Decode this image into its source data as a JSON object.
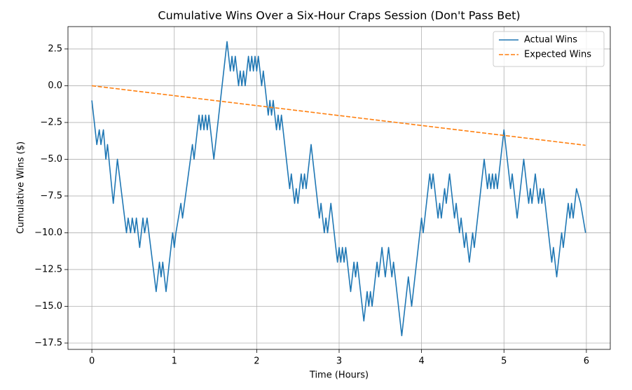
{
  "chart_data": {
    "type": "line",
    "title": "Cumulative Wins Over a Six-Hour Craps Session (Don't Pass Bet)",
    "x_label": "Time (Hours)",
    "y_label": "Cumulative Wins ($)",
    "xlim": [
      -0.29,
      6.29
    ],
    "ylim": [
      -17.93,
      4.02
    ],
    "xticks": [
      0,
      1,
      2,
      3,
      4,
      5,
      6
    ],
    "yticks": [
      {
        "value": 2.5,
        "label": "2.5"
      },
      {
        "value": 0,
        "label": "0.0"
      },
      {
        "value": -2.5,
        "label": "−2.5"
      },
      {
        "value": -5,
        "label": "−5.0"
      },
      {
        "value": -7.5,
        "label": "−7.5"
      },
      {
        "value": -10,
        "label": "−10.0"
      },
      {
        "value": -12.5,
        "label": "−12.5"
      },
      {
        "value": -15,
        "label": "−15.0"
      },
      {
        "value": -17.5,
        "label": "−17.5"
      }
    ],
    "grid": true,
    "legend": "upper right",
    "series": [
      {
        "name": "Actual Wins",
        "color": "#1f77b4",
        "dash": "solid",
        "x": [
          0,
          0.06,
          0.09,
          0.11,
          0.14,
          0.17,
          0.19,
          0.26,
          0.31,
          0.42,
          0.44,
          0.47,
          0.49,
          0.52,
          0.54,
          0.58,
          0.62,
          0.64,
          0.67,
          0.78,
          0.82,
          0.84,
          0.86,
          0.9,
          0.98,
          1.0,
          1.02,
          1.08,
          1.1,
          1.22,
          1.24,
          1.3,
          1.32,
          1.34,
          1.36,
          1.38,
          1.4,
          1.42,
          1.48,
          1.64,
          1.68,
          1.7,
          1.72,
          1.74,
          1.78,
          1.8,
          1.82,
          1.84,
          1.86,
          1.9,
          1.92,
          1.94,
          1.96,
          1.98,
          2.0,
          2.02,
          2.06,
          2.08,
          2.14,
          2.16,
          2.18,
          2.2,
          2.24,
          2.26,
          2.28,
          2.3,
          2.4,
          2.42,
          2.46,
          2.48,
          2.5,
          2.54,
          2.56,
          2.58,
          2.6,
          2.66,
          2.74,
          2.76,
          2.78,
          2.82,
          2.84,
          2.86,
          2.9,
          2.98,
          3.0,
          3.02,
          3.04,
          3.06,
          3.08,
          3.14,
          3.18,
          3.2,
          3.22,
          3.3,
          3.34,
          3.36,
          3.38,
          3.4,
          3.46,
          3.48,
          3.52,
          3.56,
          3.6,
          3.64,
          3.66,
          3.76,
          3.84,
          3.88,
          4.0,
          4.02,
          4.1,
          4.12,
          4.14,
          4.2,
          4.22,
          4.24,
          4.28,
          4.3,
          4.34,
          4.4,
          4.42,
          4.46,
          4.48,
          4.52,
          4.54,
          4.58,
          4.62,
          4.64,
          4.76,
          4.8,
          4.82,
          4.84,
          4.86,
          4.88,
          4.9,
          4.92,
          5.0,
          5.08,
          5.1,
          5.16,
          5.24,
          5.3,
          5.32,
          5.34,
          5.38,
          5.42,
          5.44,
          5.46,
          5.48,
          5.58,
          5.6,
          5.64,
          5.7,
          5.72,
          5.78,
          5.8,
          5.82,
          5.84,
          5.88,
          5.93,
          5.99
        ],
        "values": [
          -1,
          -4,
          -3,
          -4,
          -3,
          -5,
          -4,
          -8,
          -5,
          -10,
          -9,
          -10,
          -9,
          -10,
          -9,
          -11,
          -9,
          -10,
          -9,
          -14,
          -12,
          -13,
          -12,
          -14,
          -10,
          -11,
          -10,
          -8,
          -9,
          -4,
          -5,
          -2,
          -3,
          -2,
          -3,
          -2,
          -3,
          -2,
          -5,
          3,
          1,
          2,
          1,
          2,
          0,
          1,
          0,
          1,
          0,
          2,
          1,
          2,
          1,
          2,
          1,
          2,
          0,
          1,
          -2,
          -1,
          -2,
          -1,
          -3,
          -2,
          -3,
          -2,
          -7,
          -6,
          -8,
          -7,
          -8,
          -6,
          -7,
          -6,
          -7,
          -4,
          -8,
          -9,
          -8,
          -10,
          -9,
          -10,
          -8,
          -12,
          -11,
          -12,
          -11,
          -12,
          -11,
          -14,
          -12,
          -13,
          -12,
          -16,
          -14,
          -15,
          -14,
          -15,
          -12,
          -13,
          -11,
          -13,
          -11,
          -13,
          -12,
          -17,
          -13,
          -15,
          -9,
          -10,
          -6,
          -7,
          -6,
          -9,
          -8,
          -9,
          -7,
          -8,
          -6,
          -9,
          -8,
          -10,
          -9,
          -11,
          -10,
          -12,
          -10,
          -11,
          -5,
          -7,
          -6,
          -7,
          -6,
          -7,
          -6,
          -7,
          -3,
          -7,
          -6,
          -9,
          -5,
          -8,
          -7,
          -8,
          -6,
          -8,
          -7,
          -8,
          -7,
          -12,
          -11,
          -13,
          -10,
          -11,
          -8,
          -9,
          -8,
          -9,
          -7,
          -8,
          -10
        ]
      },
      {
        "name": "Expected Wins",
        "color": "#ff7f0e",
        "dash": "dashed",
        "x": [
          0,
          5.99
        ],
        "values": [
          0,
          -4.05
        ]
      }
    ]
  }
}
